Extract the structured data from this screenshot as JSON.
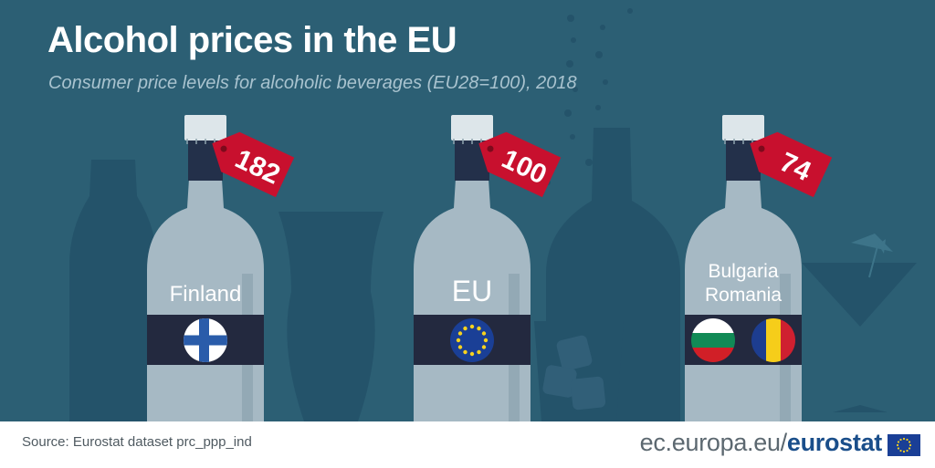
{
  "header": {
    "title": "Alcohol prices in the EU",
    "subtitle": "Consumer price levels for alcoholic beverages (EU28=100), 2018"
  },
  "chart_data": {
    "type": "bar",
    "title": "Alcohol prices in the EU",
    "subtitle": "Consumer price levels for alcoholic beverages (EU28=100), 2018",
    "categories": [
      "Finland",
      "EU",
      "Bulgaria Romania"
    ],
    "values": [
      182,
      100,
      74
    ],
    "xlabel": "",
    "ylabel": ""
  },
  "bottles": [
    {
      "label_lines": [
        "Finland"
      ],
      "value_text": "182",
      "flags": [
        "finland-flag"
      ]
    },
    {
      "label_lines": [
        "EU"
      ],
      "value_text": "100",
      "flags": [
        "eu-flag"
      ]
    },
    {
      "label_lines": [
        "Bulgaria",
        "Romania"
      ],
      "value_text": "74",
      "flags": [
        "bulgaria-flag",
        "romania-flag"
      ]
    }
  ],
  "footer": {
    "source": "Source: Eurostat dataset prc_ppp_ind",
    "site_prefix": "ec.europa.eu/",
    "site_brand": "eurostat",
    "logo": "eu-flag-icon"
  },
  "colors": {
    "background": "#2c5f74",
    "silhouette": "#24536a",
    "bottle": "#a6b9c4",
    "bottle_shade": "#93a9b5",
    "cap": "#dde6ea",
    "neck_band": "#23304a",
    "label_band": "#23293f",
    "price_tag": "#c8102e",
    "finland_blue": "#2a5caa",
    "eu_blue": "#1a3f96",
    "eu_star": "#f8d21e",
    "bulgaria_green": "#118a56",
    "bulgaria_red": "#d11f27",
    "romania_blue": "#1d3d8f",
    "romania_yellow": "#f6cd1a",
    "romania_red": "#cf2030"
  }
}
